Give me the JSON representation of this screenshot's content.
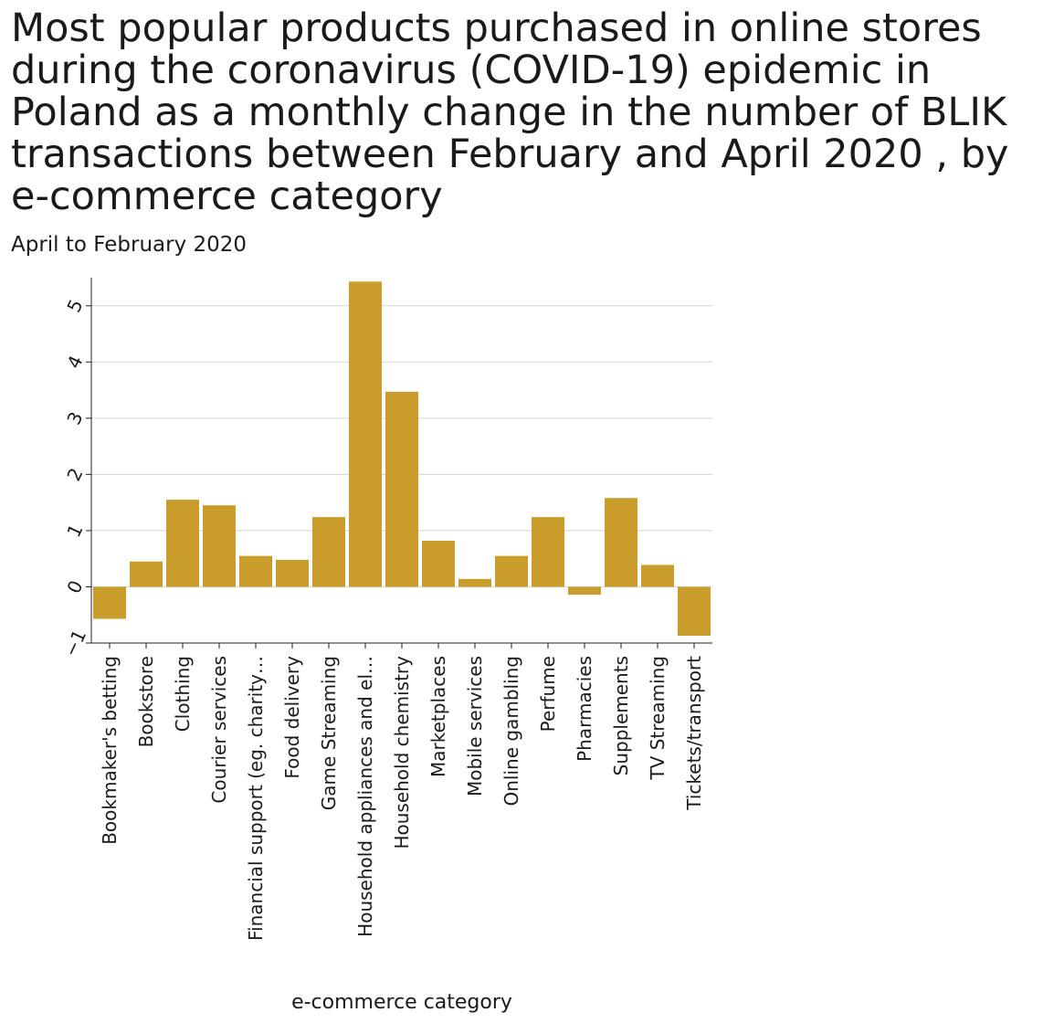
{
  "chart_data": {
    "type": "bar",
    "title": "Most popular products purchased in online stores during the coronavirus (COVID-19) epidemic in Poland as a monthly change in the number of BLIK transactions between February and April 2020 , by e-commerce category",
    "subtitle": "April to February 2020",
    "xlabel": "e-commerce category",
    "ylabel": "",
    "ylim": [
      -1,
      5.5
    ],
    "yticks": [
      -1,
      0,
      1,
      2,
      3,
      4,
      5
    ],
    "grid": true,
    "categories": [
      "Bookmaker's betting",
      "Bookstore",
      "Clothing",
      "Courier services",
      "Financial support (eg. charity…",
      "Food delivery",
      "Game Streaming",
      "Household appliances and el…",
      "Household chemistry",
      "Marketplaces",
      "Mobile services",
      "Online gambling",
      "Perfume",
      "Pharmacies",
      "Supplements",
      "TV Streaming",
      "Tickets/transport"
    ],
    "values": [
      -0.57,
      0.45,
      1.55,
      1.45,
      0.55,
      0.48,
      1.24,
      5.43,
      3.47,
      0.82,
      0.14,
      0.55,
      1.24,
      -0.14,
      1.58,
      0.39,
      -0.87
    ],
    "bar_color": "#c99d2b"
  },
  "colors": {
    "grid": "#d4d4d4",
    "axis": "#222222"
  }
}
